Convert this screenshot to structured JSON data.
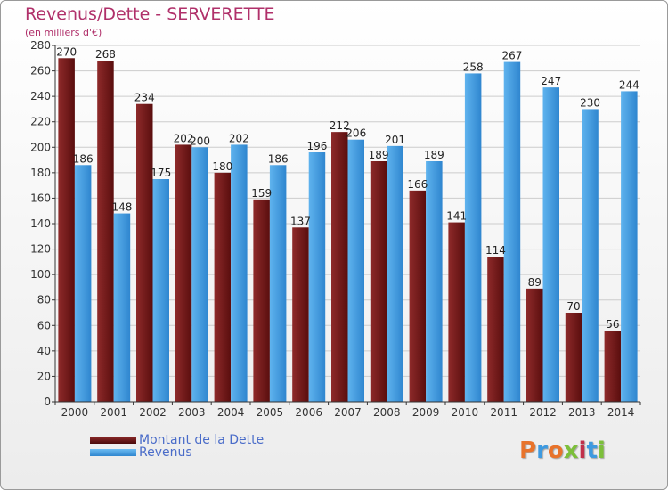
{
  "title": "Revenus/Dette - SERVERETTE",
  "subtitle": "(en milliers d'€)",
  "logo_text": "Proxiti",
  "colors": {
    "dette": "#7a1c1c",
    "revenus": "#3e9ae0",
    "title": "#b0306a",
    "grid": "#cccccc"
  },
  "chart_data": {
    "type": "bar",
    "categories": [
      "2000",
      "2001",
      "2002",
      "2003",
      "2004",
      "2005",
      "2006",
      "2007",
      "2008",
      "2009",
      "2010",
      "2011",
      "2012",
      "2013",
      "2014"
    ],
    "series": [
      {
        "name": "Montant de la Dette",
        "values": [
          270,
          268,
          234,
          202,
          180,
          159,
          137,
          212,
          189,
          166,
          141,
          114,
          89,
          70,
          56
        ]
      },
      {
        "name": "Revenus",
        "values": [
          186,
          148,
          175,
          200,
          202,
          186,
          196,
          206,
          201,
          189,
          258,
          267,
          247,
          230,
          244
        ]
      }
    ],
    "ylim": [
      0,
      280
    ],
    "yticks": [
      0,
      20,
      40,
      60,
      80,
      100,
      120,
      140,
      160,
      180,
      200,
      220,
      240,
      260,
      280
    ],
    "grid": true,
    "legend_position": "bottom-left"
  }
}
